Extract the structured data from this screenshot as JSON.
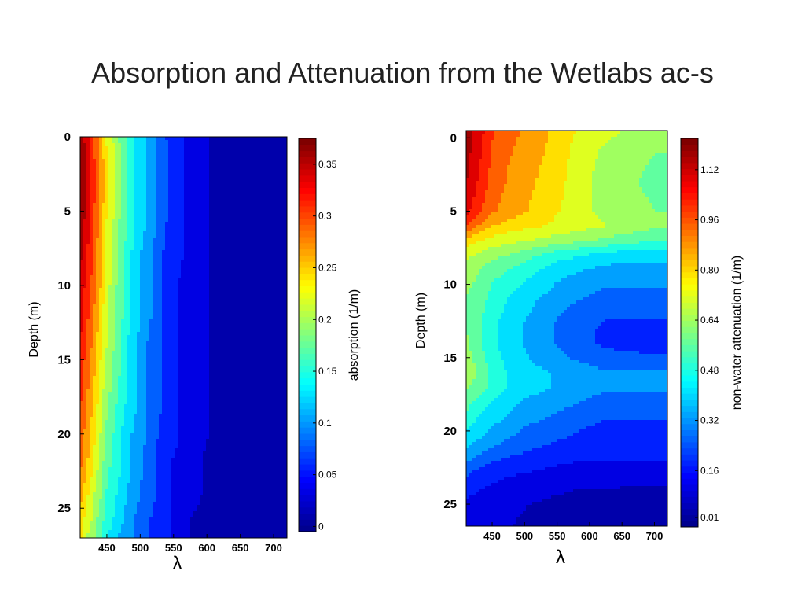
{
  "slide": {
    "title": "Absorption and Attenuation from the Wetlabs ac-s"
  },
  "colormap": [
    "#00008f",
    "#0000ff",
    "#0080ff",
    "#00ffff",
    "#80ff80",
    "#ffff00",
    "#ff8000",
    "#ff0000",
    "#800000"
  ],
  "chart_data": [
    {
      "type": "heatmap",
      "title": "",
      "xlabel": "λ",
      "ylabel": "Depth  (m)",
      "x_ticks": [
        450,
        500,
        550,
        600,
        650,
        700
      ],
      "y_ticks": [
        0,
        5,
        10,
        15,
        20,
        25
      ],
      "xlim": [
        410,
        720
      ],
      "ylim": [
        0,
        27
      ],
      "y_reversed": true,
      "wavelengths": [
        410,
        420,
        430,
        440,
        450,
        470,
        490,
        510,
        530,
        550,
        570,
        600,
        640,
        680,
        720
      ],
      "depths": [
        0,
        2,
        4,
        6,
        8,
        10,
        12,
        14,
        16,
        18,
        20,
        22,
        24,
        26,
        27
      ],
      "values": [
        [
          0.37,
          0.34,
          0.3,
          0.27,
          0.23,
          0.18,
          0.14,
          0.11,
          0.08,
          0.05,
          0.04,
          0.02,
          0.01,
          0.005,
          0.003
        ],
        [
          0.38,
          0.35,
          0.31,
          0.28,
          0.24,
          0.19,
          0.14,
          0.11,
          0.08,
          0.06,
          0.04,
          0.02,
          0.01,
          0.005,
          0.003
        ],
        [
          0.38,
          0.35,
          0.31,
          0.28,
          0.24,
          0.19,
          0.14,
          0.11,
          0.08,
          0.06,
          0.04,
          0.02,
          0.01,
          0.005,
          0.003
        ],
        [
          0.37,
          0.34,
          0.3,
          0.27,
          0.23,
          0.18,
          0.14,
          0.11,
          0.08,
          0.05,
          0.04,
          0.02,
          0.01,
          0.005,
          0.003
        ],
        [
          0.36,
          0.33,
          0.3,
          0.26,
          0.23,
          0.18,
          0.13,
          0.1,
          0.07,
          0.05,
          0.04,
          0.02,
          0.01,
          0.005,
          0.003
        ],
        [
          0.35,
          0.32,
          0.29,
          0.26,
          0.22,
          0.17,
          0.13,
          0.1,
          0.07,
          0.05,
          0.03,
          0.02,
          0.01,
          0.005,
          0.003
        ],
        [
          0.34,
          0.31,
          0.28,
          0.25,
          0.21,
          0.17,
          0.13,
          0.1,
          0.07,
          0.05,
          0.03,
          0.02,
          0.01,
          0.005,
          0.003
        ],
        [
          0.33,
          0.3,
          0.27,
          0.24,
          0.21,
          0.16,
          0.12,
          0.09,
          0.07,
          0.05,
          0.03,
          0.02,
          0.01,
          0.005,
          0.003
        ],
        [
          0.32,
          0.29,
          0.26,
          0.23,
          0.2,
          0.16,
          0.12,
          0.09,
          0.07,
          0.05,
          0.03,
          0.02,
          0.01,
          0.005,
          0.003
        ],
        [
          0.31,
          0.28,
          0.25,
          0.22,
          0.19,
          0.15,
          0.12,
          0.09,
          0.07,
          0.05,
          0.03,
          0.02,
          0.01,
          0.005,
          0.003
        ],
        [
          0.3,
          0.27,
          0.24,
          0.21,
          0.18,
          0.14,
          0.11,
          0.09,
          0.06,
          0.05,
          0.03,
          0.02,
          0.01,
          0.005,
          0.003
        ],
        [
          0.29,
          0.26,
          0.23,
          0.2,
          0.17,
          0.14,
          0.11,
          0.08,
          0.06,
          0.04,
          0.03,
          0.015,
          0.005,
          0.003,
          0.002
        ],
        [
          0.27,
          0.24,
          0.21,
          0.19,
          0.16,
          0.13,
          0.1,
          0.08,
          0.06,
          0.04,
          0.03,
          0.015,
          0.005,
          0.003,
          0.002
        ],
        [
          0.25,
          0.22,
          0.2,
          0.17,
          0.15,
          0.12,
          0.09,
          0.07,
          0.05,
          0.04,
          0.02,
          0.01,
          0.005,
          0.003,
          0.002
        ],
        [
          0.24,
          0.21,
          0.19,
          0.17,
          0.14,
          0.11,
          0.09,
          0.07,
          0.05,
          0.04,
          0.02,
          0.01,
          0.005,
          0.003,
          0.002
        ]
      ],
      "colorbar": {
        "label": "absorption (1/m)",
        "min": -0.005,
        "max": 0.375,
        "ticks": [
          0,
          0.05,
          0.1,
          0.15,
          0.2,
          0.25,
          0.3,
          0.35
        ],
        "tick_labels": [
          "0",
          "0.05",
          "0.1",
          "0.15",
          "0.2",
          "0.25",
          "0.3",
          "0.35"
        ]
      }
    },
    {
      "type": "heatmap",
      "title": "",
      "xlabel": "λ",
      "ylabel": "Depth  (m)",
      "x_ticks": [
        450,
        500,
        550,
        600,
        650,
        700
      ],
      "y_ticks": [
        0,
        5,
        10,
        15,
        20,
        25
      ],
      "xlim": [
        410,
        720
      ],
      "ylim": [
        -0.5,
        26.5
      ],
      "y_reversed": true,
      "wavelengths": [
        410,
        430,
        450,
        475,
        500,
        525,
        550,
        575,
        600,
        625,
        650,
        675,
        700,
        720
      ],
      "depths": [
        -0.5,
        1,
        3,
        5,
        6,
        7,
        8,
        9,
        10,
        11,
        12,
        13,
        14,
        15,
        16,
        17,
        18,
        19,
        20,
        21,
        22,
        23,
        24,
        25,
        26.5
      ],
      "values": [
        [
          1.2,
          1.1,
          1.0,
          0.94,
          0.9,
          0.86,
          0.8,
          0.76,
          0.72,
          0.7,
          0.68,
          0.66,
          0.64,
          0.62
        ],
        [
          1.18,
          1.08,
          0.98,
          0.92,
          0.88,
          0.84,
          0.8,
          0.74,
          0.7,
          0.66,
          0.64,
          0.62,
          0.6,
          0.6
        ],
        [
          1.15,
          1.05,
          0.96,
          0.9,
          0.86,
          0.82,
          0.78,
          0.73,
          0.68,
          0.64,
          0.62,
          0.6,
          0.58,
          0.58
        ],
        [
          1.1,
          1.0,
          0.92,
          0.88,
          0.84,
          0.8,
          0.76,
          0.72,
          0.68,
          0.66,
          0.64,
          0.62,
          0.6,
          0.6
        ],
        [
          1.0,
          0.9,
          0.84,
          0.8,
          0.78,
          0.76,
          0.74,
          0.72,
          0.7,
          0.68,
          0.66,
          0.64,
          0.62,
          0.62
        ],
        [
          0.8,
          0.76,
          0.72,
          0.7,
          0.68,
          0.66,
          0.64,
          0.62,
          0.6,
          0.58,
          0.56,
          0.54,
          0.52,
          0.52
        ],
        [
          0.7,
          0.66,
          0.62,
          0.6,
          0.56,
          0.52,
          0.48,
          0.46,
          0.44,
          0.42,
          0.4,
          0.4,
          0.4,
          0.4
        ],
        [
          0.64,
          0.6,
          0.56,
          0.52,
          0.48,
          0.44,
          0.4,
          0.38,
          0.36,
          0.34,
          0.34,
          0.34,
          0.34,
          0.34
        ],
        [
          0.62,
          0.58,
          0.52,
          0.48,
          0.44,
          0.4,
          0.36,
          0.34,
          0.32,
          0.3,
          0.3,
          0.3,
          0.3,
          0.3
        ],
        [
          0.6,
          0.56,
          0.5,
          0.44,
          0.4,
          0.36,
          0.34,
          0.3,
          0.28,
          0.26,
          0.26,
          0.26,
          0.26,
          0.26
        ],
        [
          0.6,
          0.54,
          0.48,
          0.42,
          0.38,
          0.34,
          0.3,
          0.26,
          0.24,
          0.22,
          0.22,
          0.22,
          0.22,
          0.22
        ],
        [
          0.6,
          0.54,
          0.46,
          0.4,
          0.36,
          0.32,
          0.28,
          0.24,
          0.22,
          0.2,
          0.2,
          0.2,
          0.2,
          0.2
        ],
        [
          0.62,
          0.54,
          0.46,
          0.4,
          0.36,
          0.32,
          0.28,
          0.24,
          0.22,
          0.2,
          0.2,
          0.2,
          0.18,
          0.18
        ],
        [
          0.64,
          0.56,
          0.48,
          0.42,
          0.38,
          0.34,
          0.32,
          0.28,
          0.26,
          0.24,
          0.22,
          0.22,
          0.22,
          0.22
        ],
        [
          0.66,
          0.58,
          0.5,
          0.44,
          0.4,
          0.38,
          0.36,
          0.34,
          0.32,
          0.3,
          0.3,
          0.3,
          0.3,
          0.3
        ],
        [
          0.62,
          0.56,
          0.5,
          0.44,
          0.4,
          0.38,
          0.36,
          0.34,
          0.32,
          0.3,
          0.3,
          0.3,
          0.3,
          0.3
        ],
        [
          0.56,
          0.5,
          0.44,
          0.4,
          0.36,
          0.34,
          0.32,
          0.3,
          0.28,
          0.26,
          0.26,
          0.26,
          0.26,
          0.26
        ],
        [
          0.5,
          0.44,
          0.4,
          0.36,
          0.32,
          0.3,
          0.28,
          0.26,
          0.24,
          0.22,
          0.22,
          0.22,
          0.22,
          0.22
        ],
        [
          0.44,
          0.4,
          0.36,
          0.32,
          0.28,
          0.26,
          0.24,
          0.22,
          0.2,
          0.19,
          0.19,
          0.18,
          0.18,
          0.18
        ],
        [
          0.38,
          0.34,
          0.3,
          0.26,
          0.24,
          0.22,
          0.2,
          0.18,
          0.17,
          0.16,
          0.16,
          0.16,
          0.16,
          0.16
        ],
        [
          0.3,
          0.26,
          0.22,
          0.2,
          0.18,
          0.16,
          0.15,
          0.14,
          0.14,
          0.14,
          0.14,
          0.14,
          0.14,
          0.14
        ],
        [
          0.22,
          0.18,
          0.16,
          0.14,
          0.13,
          0.12,
          0.11,
          0.1,
          0.1,
          0.1,
          0.1,
          0.1,
          0.1,
          0.1
        ],
        [
          0.16,
          0.14,
          0.12,
          0.1,
          0.09,
          0.08,
          0.07,
          0.06,
          0.06,
          0.06,
          0.05,
          0.05,
          0.05,
          0.05
        ],
        [
          0.12,
          0.1,
          0.08,
          0.07,
          0.06,
          0.05,
          0.04,
          0.03,
          0.03,
          0.02,
          0.02,
          0.02,
          0.02,
          0.02
        ],
        [
          0.1,
          0.08,
          0.07,
          0.06,
          0.05,
          0.04,
          0.03,
          0.02,
          0.02,
          0.01,
          0.01,
          0.01,
          0.01,
          0.01
        ]
      ],
      "colorbar": {
        "label": "non-water attenuation (1/m)",
        "min": -0.02,
        "max": 1.22,
        "ticks": [
          0.01,
          0.16,
          0.32,
          0.48,
          0.64,
          0.8,
          0.96,
          1.12
        ],
        "tick_labels": [
          "0.01",
          "0.16",
          "0.32",
          "0.48",
          "0.64",
          "0.80",
          "0.96",
          "1.12"
        ]
      }
    }
  ]
}
